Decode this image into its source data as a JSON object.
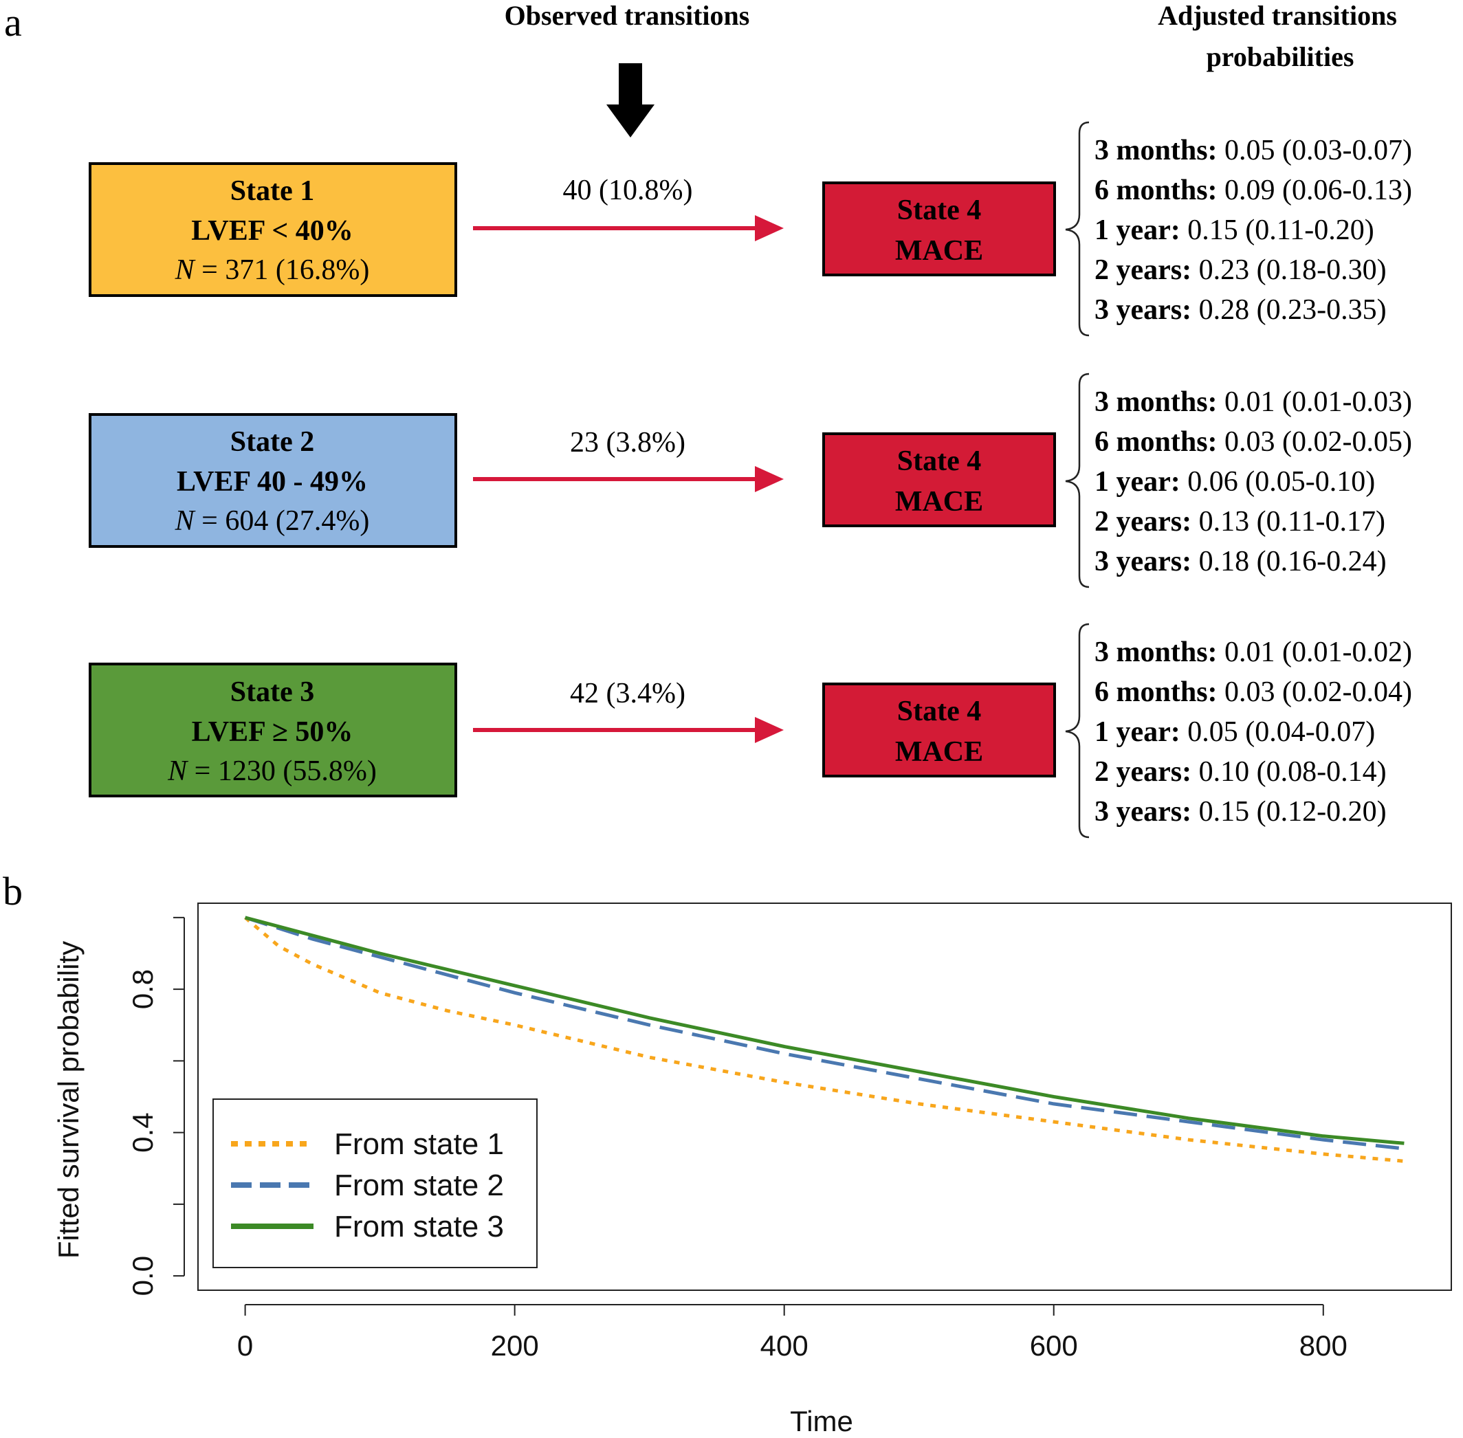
{
  "panel_a": {
    "label": "a",
    "observed_header": "Observed transitions",
    "adjusted_header_line1": "Adjusted transitions",
    "adjusted_header_line2": "probabilities",
    "target_state_line1": "State 4",
    "target_state_line2": "MACE",
    "states": [
      {
        "name": "State 1",
        "criterion": "LVEF < 40%",
        "n_label": "N",
        "n_value": " = 371 (16.8%)",
        "color": "#fcbf3f",
        "transition": "40 (10.8%)",
        "probabilities": [
          {
            "label": "3 months:",
            "value": " 0.05 (0.03-0.07)"
          },
          {
            "label": "6 months:",
            "value": " 0.09 (0.06-0.13)"
          },
          {
            "label": "1 year:",
            "value": " 0.15 (0.11-0.20)"
          },
          {
            "label": "2 years:",
            "value": " 0.23 (0.18-0.30)"
          },
          {
            "label": "3 years:",
            "value": " 0.28 (0.23-0.35)"
          }
        ]
      },
      {
        "name": "State 2",
        "criterion": "LVEF 40 - 49%",
        "n_label": "N",
        "n_value": " = 604 (27.4%)",
        "color": "#8fb5e0",
        "transition": "23 (3.8%)",
        "probabilities": [
          {
            "label": "3 months:",
            "value": " 0.01 (0.01-0.03)"
          },
          {
            "label": "6 months:",
            "value": " 0.03 (0.02-0.05)"
          },
          {
            "label": "1 year:",
            "value": " 0.06 (0.05-0.10)"
          },
          {
            "label": "2 years:",
            "value": " 0.13 (0.11-0.17)"
          },
          {
            "label": "3 years:",
            "value": " 0.18 (0.16-0.24)"
          }
        ]
      },
      {
        "name": "State 3",
        "criterion": "LVEF ≥ 50%",
        "n_label": "N",
        "n_value": " = 1230 (55.8%)",
        "color": "#5a9a3a",
        "transition": "42 (3.4%)",
        "probabilities": [
          {
            "label": "3 months:",
            "value": " 0.01 (0.01-0.02)"
          },
          {
            "label": "6 months:",
            "value": " 0.03 (0.02-0.04)"
          },
          {
            "label": "1 year:",
            "value": " 0.05 (0.04-0.07)"
          },
          {
            "label": "2 years:",
            "value": " 0.10 (0.08-0.14)"
          },
          {
            "label": "3 years:",
            "value": " 0.15 (0.12-0.20)"
          }
        ]
      }
    ],
    "colors": {
      "target_box": "#d31b36",
      "arrow": "#d6183a",
      "down_arrow": "#000000"
    }
  },
  "panel_b": {
    "label": "b"
  },
  "chart_data": {
    "type": "line",
    "title": "",
    "xlabel": "Time",
    "ylabel": "Fitted survival probability",
    "xlim": [
      -35,
      895
    ],
    "ylim": [
      -0.04,
      1.04
    ],
    "xticks": [
      "0",
      "200",
      "400",
      "600",
      "800"
    ],
    "yticks": [
      "0.0",
      "0.4",
      "0.8"
    ],
    "legend_position": "bottom-left",
    "grid": false,
    "series": [
      {
        "name": "From state 1",
        "color": "#f8a61c",
        "style": "dotted",
        "x": [
          0,
          25,
          50,
          100,
          150,
          200,
          300,
          400,
          500,
          600,
          700,
          800,
          860
        ],
        "y": [
          1.0,
          0.92,
          0.87,
          0.79,
          0.74,
          0.7,
          0.61,
          0.54,
          0.48,
          0.43,
          0.38,
          0.34,
          0.32
        ]
      },
      {
        "name": "From state 2",
        "color": "#4a78b0",
        "style": "dashed",
        "x": [
          0,
          50,
          100,
          200,
          300,
          400,
          500,
          600,
          700,
          800,
          860
        ],
        "y": [
          1.0,
          0.94,
          0.89,
          0.79,
          0.7,
          0.62,
          0.55,
          0.48,
          0.43,
          0.38,
          0.355
        ]
      },
      {
        "name": "From state 3",
        "color": "#3c8a26",
        "style": "solid",
        "x": [
          0,
          50,
          100,
          200,
          300,
          400,
          500,
          600,
          700,
          800,
          860
        ],
        "y": [
          1.0,
          0.95,
          0.9,
          0.81,
          0.72,
          0.64,
          0.57,
          0.5,
          0.44,
          0.39,
          0.37
        ]
      }
    ]
  }
}
